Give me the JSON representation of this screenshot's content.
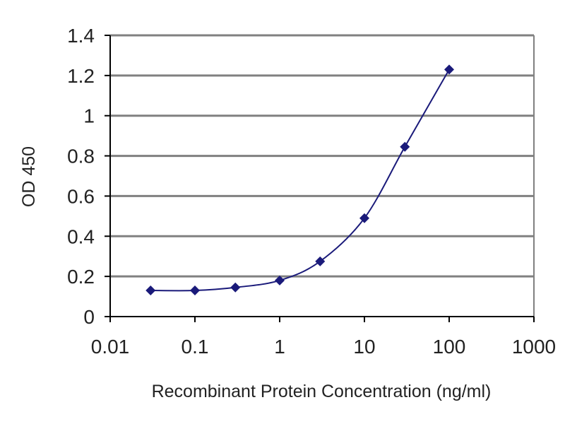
{
  "chart_data": {
    "type": "line",
    "xlabel": "Recombinant Protein Concentration (ng/ml)",
    "ylabel": "OD 450",
    "x_scale": "log",
    "xlim": [
      0.01,
      1000
    ],
    "ylim": [
      0,
      1.4
    ],
    "x_tick_labels": [
      "0.01",
      "0.1",
      "1",
      "10",
      "100",
      "1000"
    ],
    "x_tick_values": [
      0.01,
      0.1,
      1,
      10,
      100,
      1000
    ],
    "y_tick_labels": [
      "0",
      "0.2",
      "0.4",
      "0.6",
      "0.8",
      "1",
      "1.2",
      "1.4"
    ],
    "y_tick_values": [
      0,
      0.2,
      0.4,
      0.6,
      0.8,
      1,
      1.2,
      1.4
    ],
    "grid": true,
    "legend": "none",
    "series": [
      {
        "x": [
          0.03,
          0.1,
          0.3,
          1,
          3,
          10,
          30,
          100
        ],
        "y": [
          0.13,
          0.13,
          0.145,
          0.18,
          0.275,
          0.49,
          0.845,
          1.23
        ]
      }
    ],
    "colors": {
      "series": "#1a1a7a",
      "gridline": "#808080",
      "plot_frame": "#808080",
      "axis_line": "#000000"
    }
  }
}
